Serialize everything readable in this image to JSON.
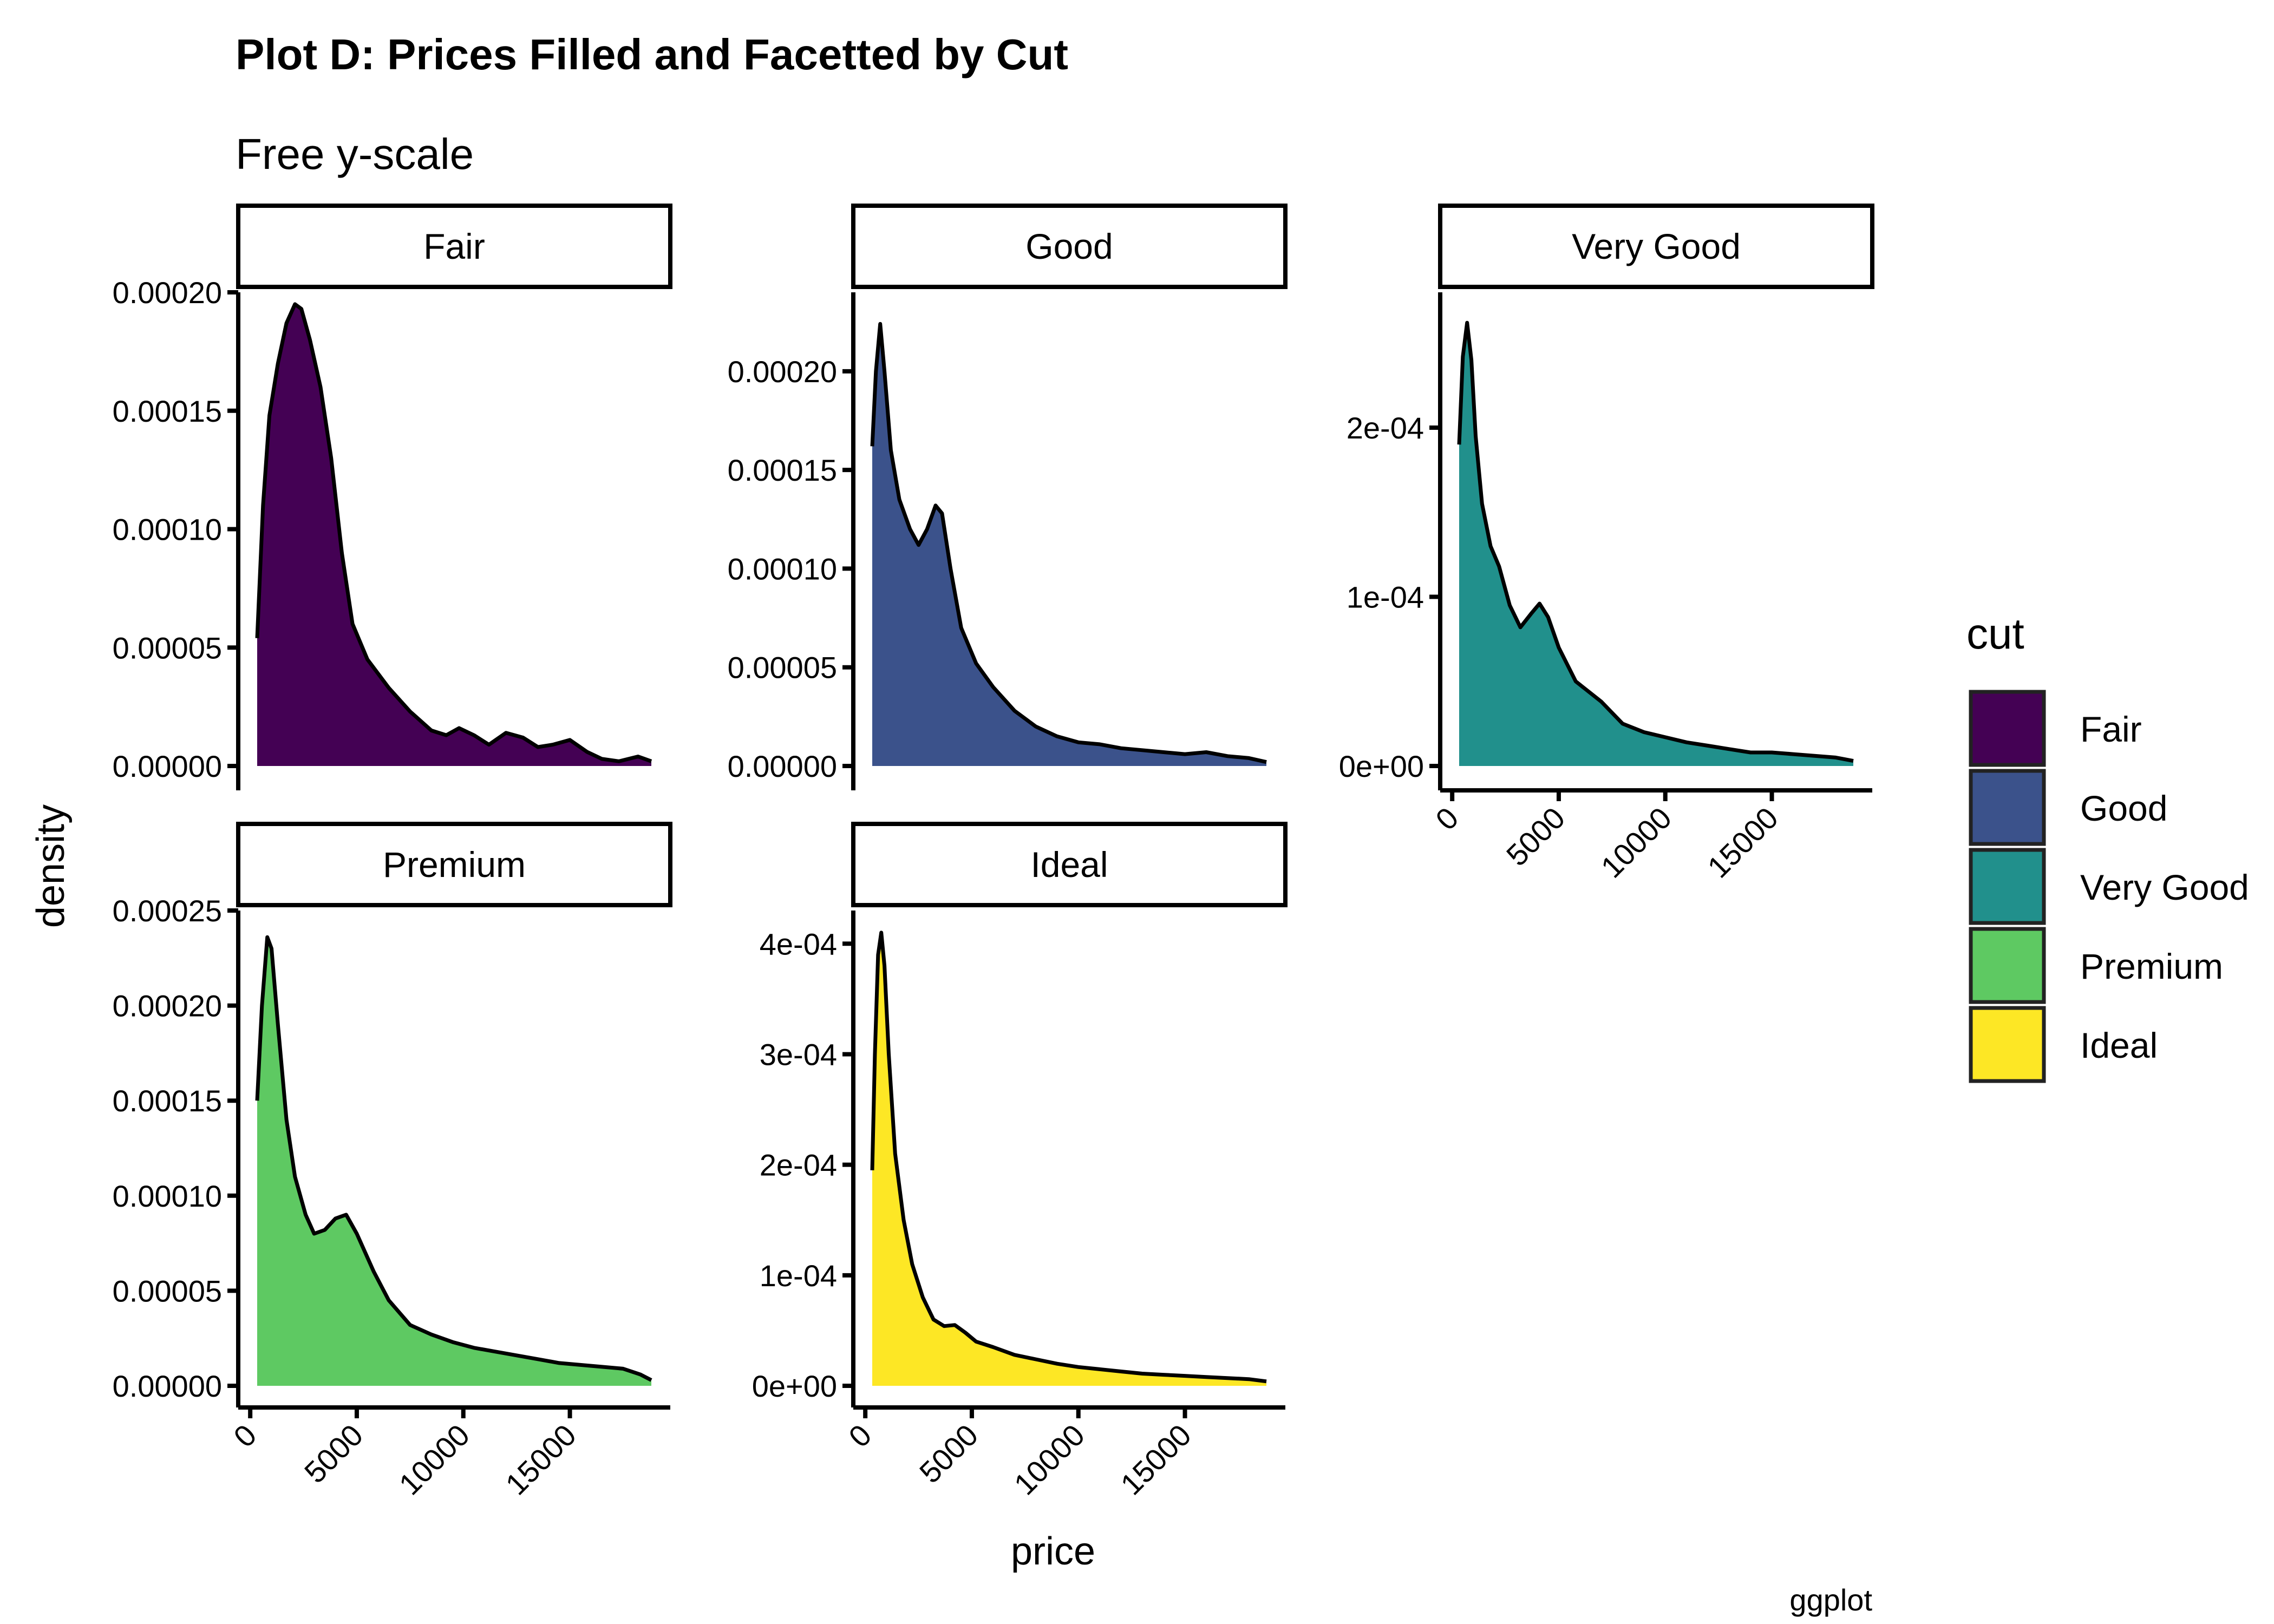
{
  "title": "Plot D: Prices Filled and Facetted by Cut",
  "subtitle": "Free y-scale",
  "caption": "ggplot",
  "x_label": "price",
  "y_label": "density",
  "legend_title": "cut",
  "chart_data": {
    "type": "area",
    "title": "Plot D: Prices Filled and Facetted by Cut",
    "subtitle": "Free y-scale",
    "xlabel": "price",
    "ylabel": "density",
    "legend": {
      "title": "cut",
      "position": "right"
    },
    "grid": false,
    "xlim": [
      326,
      18823
    ],
    "x_ticks": [
      0,
      5000,
      10000,
      15000
    ],
    "x_tick_labels": [
      "0",
      "5000",
      "10000",
      "15000"
    ],
    "x_tick_label_angle": 45,
    "facets": [
      {
        "name": "Fair",
        "color": "#440154",
        "ylim": [
          0,
          0.0002
        ],
        "y_ticks": [
          0,
          5e-05,
          0.0001,
          0.00015,
          0.0002
        ],
        "y_tick_labels": [
          "0.00000",
          "0.00005",
          "0.00010",
          "0.00015",
          "0.00020"
        ],
        "points": [
          [
            326,
            5.4e-05
          ],
          [
            600,
            0.00011
          ],
          [
            900,
            0.000148
          ],
          [
            1300,
            0.00017
          ],
          [
            1700,
            0.000187
          ],
          [
            2100,
            0.000195
          ],
          [
            2400,
            0.000193
          ],
          [
            2800,
            0.00018
          ],
          [
            3300,
            0.00016
          ],
          [
            3800,
            0.00013
          ],
          [
            4300,
            9e-05
          ],
          [
            4800,
            6e-05
          ],
          [
            5500,
            4.5e-05
          ],
          [
            6500,
            3.3e-05
          ],
          [
            7500,
            2.3e-05
          ],
          [
            8500,
            1.5e-05
          ],
          [
            9200,
            1.3e-05
          ],
          [
            9800,
            1.6e-05
          ],
          [
            10500,
            1.3e-05
          ],
          [
            11200,
            9e-06
          ],
          [
            12000,
            1.4e-05
          ],
          [
            12800,
            1.2e-05
          ],
          [
            13500,
            8e-06
          ],
          [
            14200,
            9e-06
          ],
          [
            15000,
            1.1e-05
          ],
          [
            15800,
            6e-06
          ],
          [
            16500,
            3e-06
          ],
          [
            17300,
            2e-06
          ],
          [
            18200,
            4e-06
          ],
          [
            18823,
            2e-06
          ]
        ]
      },
      {
        "name": "Good",
        "color": "#3b528b",
        "ylim": [
          0,
          0.00024
        ],
        "y_ticks": [
          0,
          5e-05,
          0.0001,
          0.00015,
          0.0002
        ],
        "y_tick_labels": [
          "0.00000",
          "0.00005",
          "0.00010",
          "0.00015",
          "0.00020"
        ],
        "points": [
          [
            326,
            0.000162
          ],
          [
            500,
            0.0002
          ],
          [
            700,
            0.000224
          ],
          [
            900,
            0.0002
          ],
          [
            1200,
            0.00016
          ],
          [
            1600,
            0.000135
          ],
          [
            2100,
            0.00012
          ],
          [
            2500,
            0.000112
          ],
          [
            2900,
            0.00012
          ],
          [
            3300,
            0.000132
          ],
          [
            3600,
            0.000128
          ],
          [
            4000,
            0.0001
          ],
          [
            4500,
            7e-05
          ],
          [
            5200,
            5.2e-05
          ],
          [
            6000,
            4e-05
          ],
          [
            7000,
            2.8e-05
          ],
          [
            8000,
            2e-05
          ],
          [
            9000,
            1.5e-05
          ],
          [
            10000,
            1.2e-05
          ],
          [
            11000,
            1.1e-05
          ],
          [
            12000,
            9e-06
          ],
          [
            13000,
            8e-06
          ],
          [
            14000,
            7e-06
          ],
          [
            15000,
            6e-06
          ],
          [
            16000,
            7e-06
          ],
          [
            17000,
            5e-06
          ],
          [
            18000,
            4e-06
          ],
          [
            18823,
            2e-06
          ]
        ]
      },
      {
        "name": "Very Good",
        "color": "#21908c",
        "ylim": [
          0,
          0.00028
        ],
        "y_ticks": [
          0,
          0.0001,
          0.0002
        ],
        "y_tick_labels": [
          "0e+00",
          "1e-04",
          "2e-04"
        ],
        "points": [
          [
            326,
            0.00019
          ],
          [
            500,
            0.000242
          ],
          [
            700,
            0.000262
          ],
          [
            900,
            0.00024
          ],
          [
            1100,
            0.000195
          ],
          [
            1400,
            0.000155
          ],
          [
            1800,
            0.00013
          ],
          [
            2200,
            0.000118
          ],
          [
            2700,
            9.5e-05
          ],
          [
            3200,
            8.2e-05
          ],
          [
            3700,
            9e-05
          ],
          [
            4100,
            9.6e-05
          ],
          [
            4500,
            8.8e-05
          ],
          [
            5000,
            7e-05
          ],
          [
            5800,
            5e-05
          ],
          [
            7000,
            3.8e-05
          ],
          [
            8000,
            2.5e-05
          ],
          [
            9000,
            2e-05
          ],
          [
            10000,
            1.7e-05
          ],
          [
            11000,
            1.4e-05
          ],
          [
            12000,
            1.2e-05
          ],
          [
            13000,
            1e-05
          ],
          [
            14000,
            8e-06
          ],
          [
            15000,
            8e-06
          ],
          [
            16000,
            7e-06
          ],
          [
            17000,
            6e-06
          ],
          [
            18000,
            5e-06
          ],
          [
            18823,
            3e-06
          ]
        ]
      },
      {
        "name": "Premium",
        "color": "#5ec962",
        "ylim": [
          0,
          0.00025
        ],
        "y_ticks": [
          0,
          5e-05,
          0.0001,
          0.00015,
          0.0002,
          0.00025
        ],
        "y_tick_labels": [
          "0.00000",
          "0.00005",
          "0.00010",
          "0.00015",
          "0.00020",
          "0.00025"
        ],
        "points": [
          [
            326,
            0.00015
          ],
          [
            550,
            0.0002
          ],
          [
            800,
            0.000236
          ],
          [
            1000,
            0.00023
          ],
          [
            1300,
            0.00019
          ],
          [
            1700,
            0.00014
          ],
          [
            2100,
            0.00011
          ],
          [
            2600,
            9e-05
          ],
          [
            3000,
            8e-05
          ],
          [
            3500,
            8.2e-05
          ],
          [
            4000,
            8.8e-05
          ],
          [
            4500,
            9e-05
          ],
          [
            5000,
            8e-05
          ],
          [
            5800,
            6e-05
          ],
          [
            6500,
            4.5e-05
          ],
          [
            7500,
            3.2e-05
          ],
          [
            8500,
            2.7e-05
          ],
          [
            9500,
            2.3e-05
          ],
          [
            10500,
            2e-05
          ],
          [
            11500,
            1.8e-05
          ],
          [
            12500,
            1.6e-05
          ],
          [
            13500,
            1.4e-05
          ],
          [
            14500,
            1.2e-05
          ],
          [
            15500,
            1.1e-05
          ],
          [
            16500,
            1e-05
          ],
          [
            17500,
            9e-06
          ],
          [
            18300,
            6e-06
          ],
          [
            18823,
            3e-06
          ]
        ]
      },
      {
        "name": "Ideal",
        "color": "#fde725",
        "ylim": [
          0,
          0.00043
        ],
        "y_ticks": [
          0,
          0.0001,
          0.0002,
          0.0003,
          0.0004
        ],
        "y_tick_labels": [
          "0e+00",
          "1e-04",
          "2e-04",
          "3e-04",
          "4e-04"
        ],
        "points": [
          [
            326,
            0.000195
          ],
          [
            450,
            0.0003
          ],
          [
            600,
            0.00039
          ],
          [
            750,
            0.00041
          ],
          [
            900,
            0.00038
          ],
          [
            1100,
            0.0003
          ],
          [
            1400,
            0.00021
          ],
          [
            1800,
            0.00015
          ],
          [
            2200,
            0.00011
          ],
          [
            2700,
            8e-05
          ],
          [
            3200,
            6e-05
          ],
          [
            3700,
            5.4e-05
          ],
          [
            4200,
            5.5e-05
          ],
          [
            4700,
            4.8e-05
          ],
          [
            5200,
            4e-05
          ],
          [
            6000,
            3.5e-05
          ],
          [
            7000,
            2.8e-05
          ],
          [
            8000,
            2.4e-05
          ],
          [
            9000,
            2e-05
          ],
          [
            10000,
            1.7e-05
          ],
          [
            11000,
            1.5e-05
          ],
          [
            12000,
            1.3e-05
          ],
          [
            13000,
            1.1e-05
          ],
          [
            14000,
            1e-05
          ],
          [
            15000,
            9e-06
          ],
          [
            16000,
            8e-06
          ],
          [
            17000,
            7e-06
          ],
          [
            18000,
            6e-06
          ],
          [
            18823,
            4e-06
          ]
        ]
      }
    ]
  }
}
